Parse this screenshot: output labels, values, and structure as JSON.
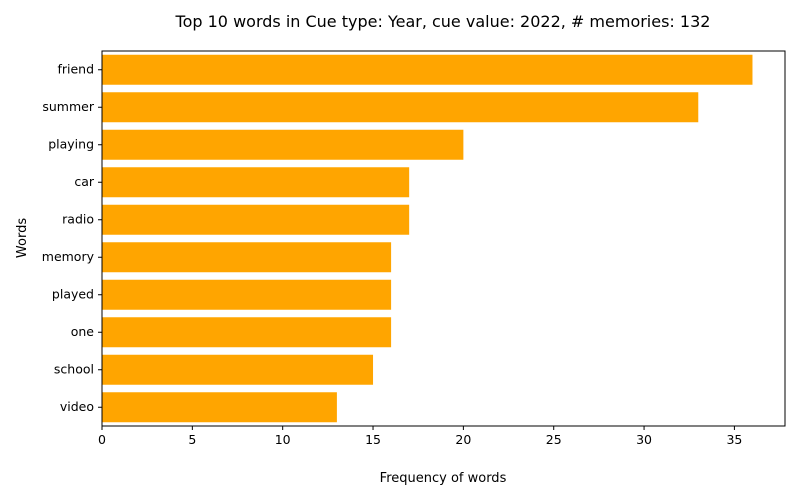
{
  "chart_data": {
    "type": "bar",
    "orientation": "horizontal",
    "title": "Top 10 words in Cue type: Year, cue value: 2022, # memories: 132",
    "xlabel": "Frequency of words",
    "ylabel": "Words",
    "categories": [
      "friend",
      "summer",
      "playing",
      "car",
      "radio",
      "memory",
      "played",
      "one",
      "school",
      "video"
    ],
    "values": [
      36,
      33,
      20,
      17,
      17,
      16,
      16,
      16,
      15,
      13
    ],
    "xlim": [
      0,
      37.8
    ],
    "xticks": [
      "0",
      "5",
      "10",
      "15",
      "20",
      "25",
      "30",
      "35"
    ],
    "grid": false,
    "bar_color": "#FFA500"
  }
}
